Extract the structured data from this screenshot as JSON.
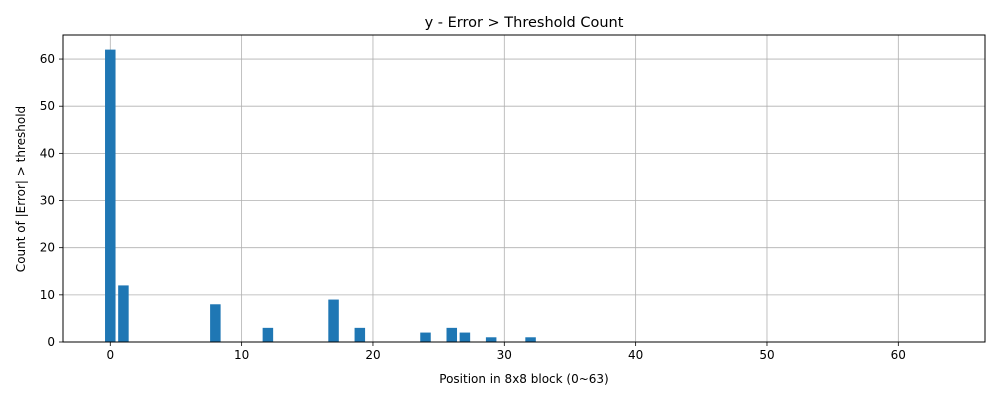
{
  "chart_data": {
    "type": "bar",
    "title": "y - Error > Threshold Count",
    "xlabel": "Position in 8x8 block (0~63)",
    "ylabel": "Count of |Error| > threshold",
    "xlim": [
      -3.6,
      66.6
    ],
    "ylim": [
      0,
      65.1
    ],
    "xticks": [
      0,
      10,
      20,
      30,
      40,
      50,
      60
    ],
    "yticks": [
      0,
      10,
      20,
      30,
      40,
      50,
      60
    ],
    "grid": true,
    "bar_color": "#1f77b4",
    "x": [
      0,
      1,
      8,
      12,
      17,
      19,
      24,
      26,
      27,
      29,
      32
    ],
    "values": [
      62,
      12,
      8,
      3,
      9,
      3,
      2,
      3,
      2,
      1,
      1
    ]
  }
}
